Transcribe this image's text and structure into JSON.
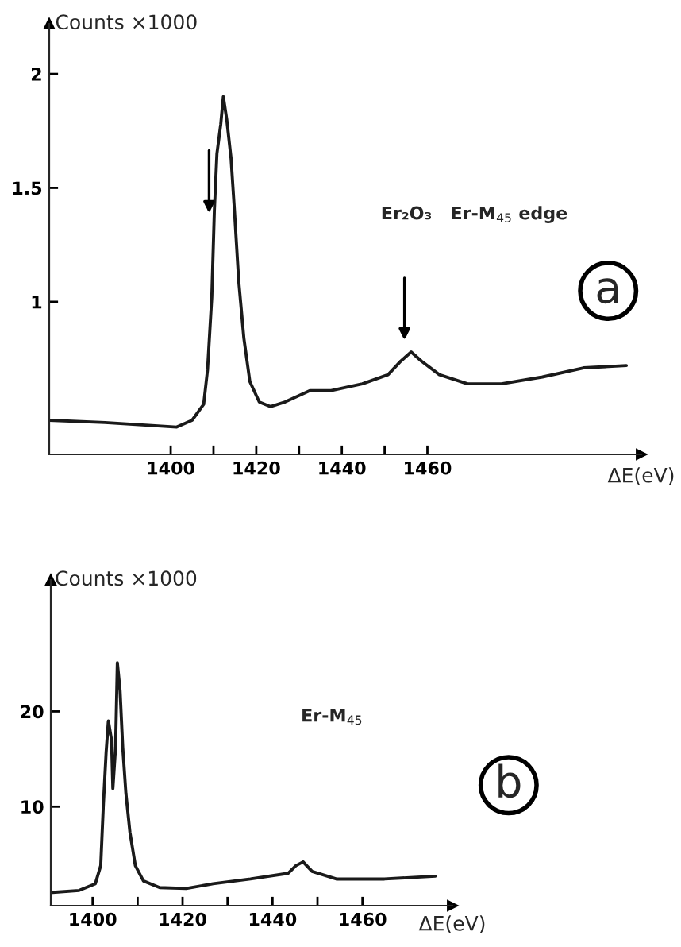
{
  "chart_data": [
    {
      "type": "line",
      "xlabel": "ΔE(eV)",
      "ylabel": "Counts ×1000",
      "x": [
        1371.6,
        1384.6,
        1401.4,
        1405,
        1407.7,
        1408.6,
        1409.6,
        1410.2,
        1410.8,
        1411.7,
        1412.3,
        1413.1,
        1414.1,
        1414.9,
        1415.9,
        1417.1,
        1418.5,
        1420.7,
        1423.3,
        1426.7,
        1432.5,
        1437.5,
        1444.8,
        1450.8,
        1453.8,
        1456.2,
        1458.6,
        1462.8,
        1469.4,
        1477.3,
        1486.9,
        1496.5,
        1506.5
      ],
      "series": [
        {
          "color": "#1a1a1a",
          "values": [
            0.48,
            0.47,
            0.45,
            0.48,
            0.55,
            0.7,
            1.02,
            1.4,
            1.65,
            1.78,
            1.9,
            1.8,
            1.63,
            1.4,
            1.09,
            0.84,
            0.65,
            0.56,
            0.54,
            0.56,
            0.61,
            0.61,
            0.64,
            0.68,
            0.74,
            0.78,
            0.74,
            0.68,
            0.64,
            0.64,
            0.67,
            0.71,
            0.72
          ]
        }
      ],
      "xlim": [
        1371.6,
        1510
      ],
      "ylim": [
        0.33,
        2.22
      ],
      "xticks": [
        1400,
        {
          "value": 1410,
          "label": null
        },
        1420,
        {
          "value": 1430,
          "label": null
        },
        1440,
        {
          "value": 1450,
          "label": null
        },
        1460
      ],
      "yticks": [
        1,
        1.5,
        2
      ],
      "grid": false,
      "legend": false,
      "marker": "none",
      "line_style": "solid",
      "annotations": [
        "Er₂O₃   Er-M$_{45}$ edge",
        "a"
      ]
    },
    {
      "type": "line",
      "xlabel": "ΔE(eV)",
      "ylabel": "Counts ×1000",
      "x": [
        1391.1,
        1397.0,
        1400.6,
        1401.8,
        1402.4,
        1403.0,
        1403.5,
        1404.2,
        1404.5,
        1405.1,
        1405.5,
        1406.1,
        1406.7,
        1407.4,
        1408.3,
        1409.5,
        1411.3,
        1414.9,
        1420.8,
        1426.8,
        1435.1,
        1443.5,
        1445.2,
        1446.8,
        1448.8,
        1454.2,
        1464.9,
        1476.2
      ],
      "series": [
        {
          "color": "#1a1a1a",
          "values": [
            1.0,
            1.2,
            1.9,
            3.8,
            10.3,
            15.7,
            19.0,
            17.0,
            11.9,
            16.2,
            25.1,
            22.2,
            16.2,
            11.4,
            7.3,
            3.8,
            2.2,
            1.5,
            1.4,
            1.9,
            2.4,
            3.0,
            3.8,
            4.2,
            3.2,
            2.4,
            2.4,
            2.7
          ]
        }
      ],
      "xlim": [
        1390.7,
        1480
      ],
      "ylim": [
        -0.4,
        33.8
      ],
      "xticks": [
        1400,
        {
          "value": 1410,
          "label": null
        },
        1420,
        {
          "value": 1430,
          "label": null
        },
        1440,
        {
          "value": 1450,
          "label": null
        },
        1460
      ],
      "yticks": [
        10,
        20
      ],
      "grid": false,
      "legend": false,
      "marker": "none",
      "line_style": "solid",
      "annotations": [
        "Er-M$_{45}$",
        "b"
      ]
    }
  ]
}
